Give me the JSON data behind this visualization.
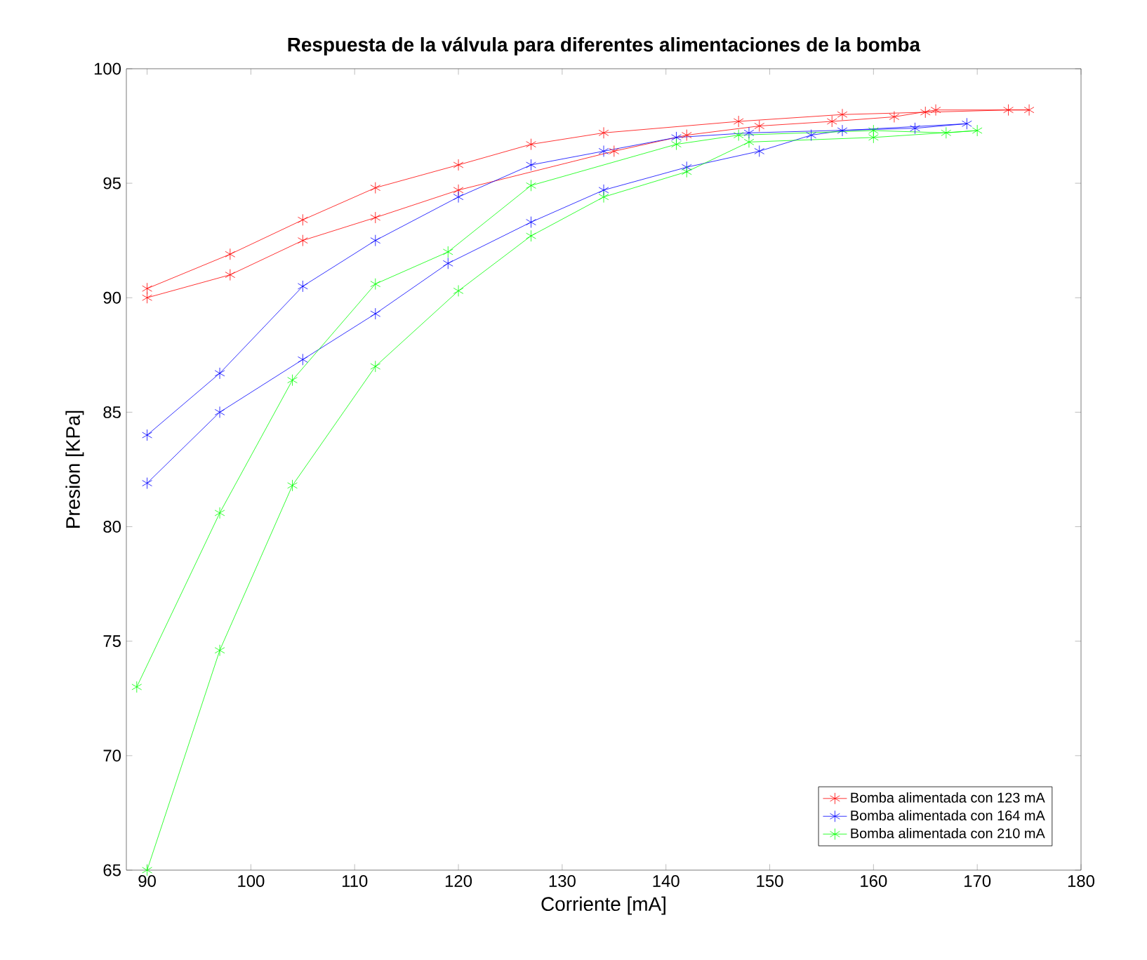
{
  "chart_data": {
    "type": "line",
    "title": "**Respuesta de la válvula para diferentes alimentaciones de la bomba**",
    "xlabel": "Corriente [mA]",
    "ylabel": "Presion [KPa]",
    "xlim": [
      88,
      180
    ],
    "xticks": [
      90,
      100,
      110,
      120,
      130,
      140,
      150,
      160,
      170,
      180
    ],
    "ylim": [
      65,
      100
    ],
    "yticks": [
      65,
      70,
      75,
      80,
      85,
      90,
      95,
      100
    ],
    "grid": false,
    "legend": "bottom right",
    "marker": "cross",
    "line_style": "solid",
    "series": [
      {
        "name": "Bomba alimentada con 123 mA",
        "color": "#ff0000",
        "x": [
          90,
          98,
          105,
          112,
          120,
          135,
          142,
          149,
          156,
          162,
          166,
          175,
          173,
          165,
          157,
          147,
          134,
          127,
          120,
          112,
          105,
          98,
          90
        ],
        "values": [
          90.0,
          91.0,
          92.5,
          93.5,
          94.7,
          96.4,
          97.1,
          97.5,
          97.7,
          97.9,
          98.2,
          98.2,
          98.2,
          98.1,
          98.0,
          97.7,
          97.2,
          96.7,
          95.8,
          94.8,
          93.4,
          91.9,
          90.4
        ]
      },
      {
        "name": "Bomba alimentada con 164 mA",
        "color": "#0000ff",
        "x": [
          90,
          97,
          105,
          112,
          119,
          127,
          134,
          142,
          149,
          154,
          157,
          169,
          164,
          148,
          141,
          134,
          127,
          120,
          112,
          105,
          97,
          90
        ],
        "values": [
          81.9,
          85.0,
          87.3,
          89.3,
          91.5,
          93.3,
          94.7,
          95.7,
          96.4,
          97.1,
          97.3,
          97.6,
          97.4,
          97.2,
          97.0,
          96.4,
          95.8,
          94.4,
          92.5,
          90.5,
          86.7,
          84.0
        ]
      },
      {
        "name": "Bomba alimentada con 210 mA",
        "color": "#00ff00",
        "x": [
          90,
          97,
          104,
          112,
          120,
          127,
          134,
          142,
          148,
          160,
          170,
          167,
          160,
          147,
          141,
          127,
          119,
          112,
          104,
          97,
          89
        ],
        "values": [
          65.0,
          74.6,
          81.8,
          87.0,
          90.3,
          92.7,
          94.4,
          95.5,
          96.8,
          97.0,
          97.3,
          97.2,
          97.3,
          97.1,
          96.7,
          94.9,
          92.0,
          90.6,
          86.4,
          80.6,
          73.0
        ]
      }
    ]
  }
}
